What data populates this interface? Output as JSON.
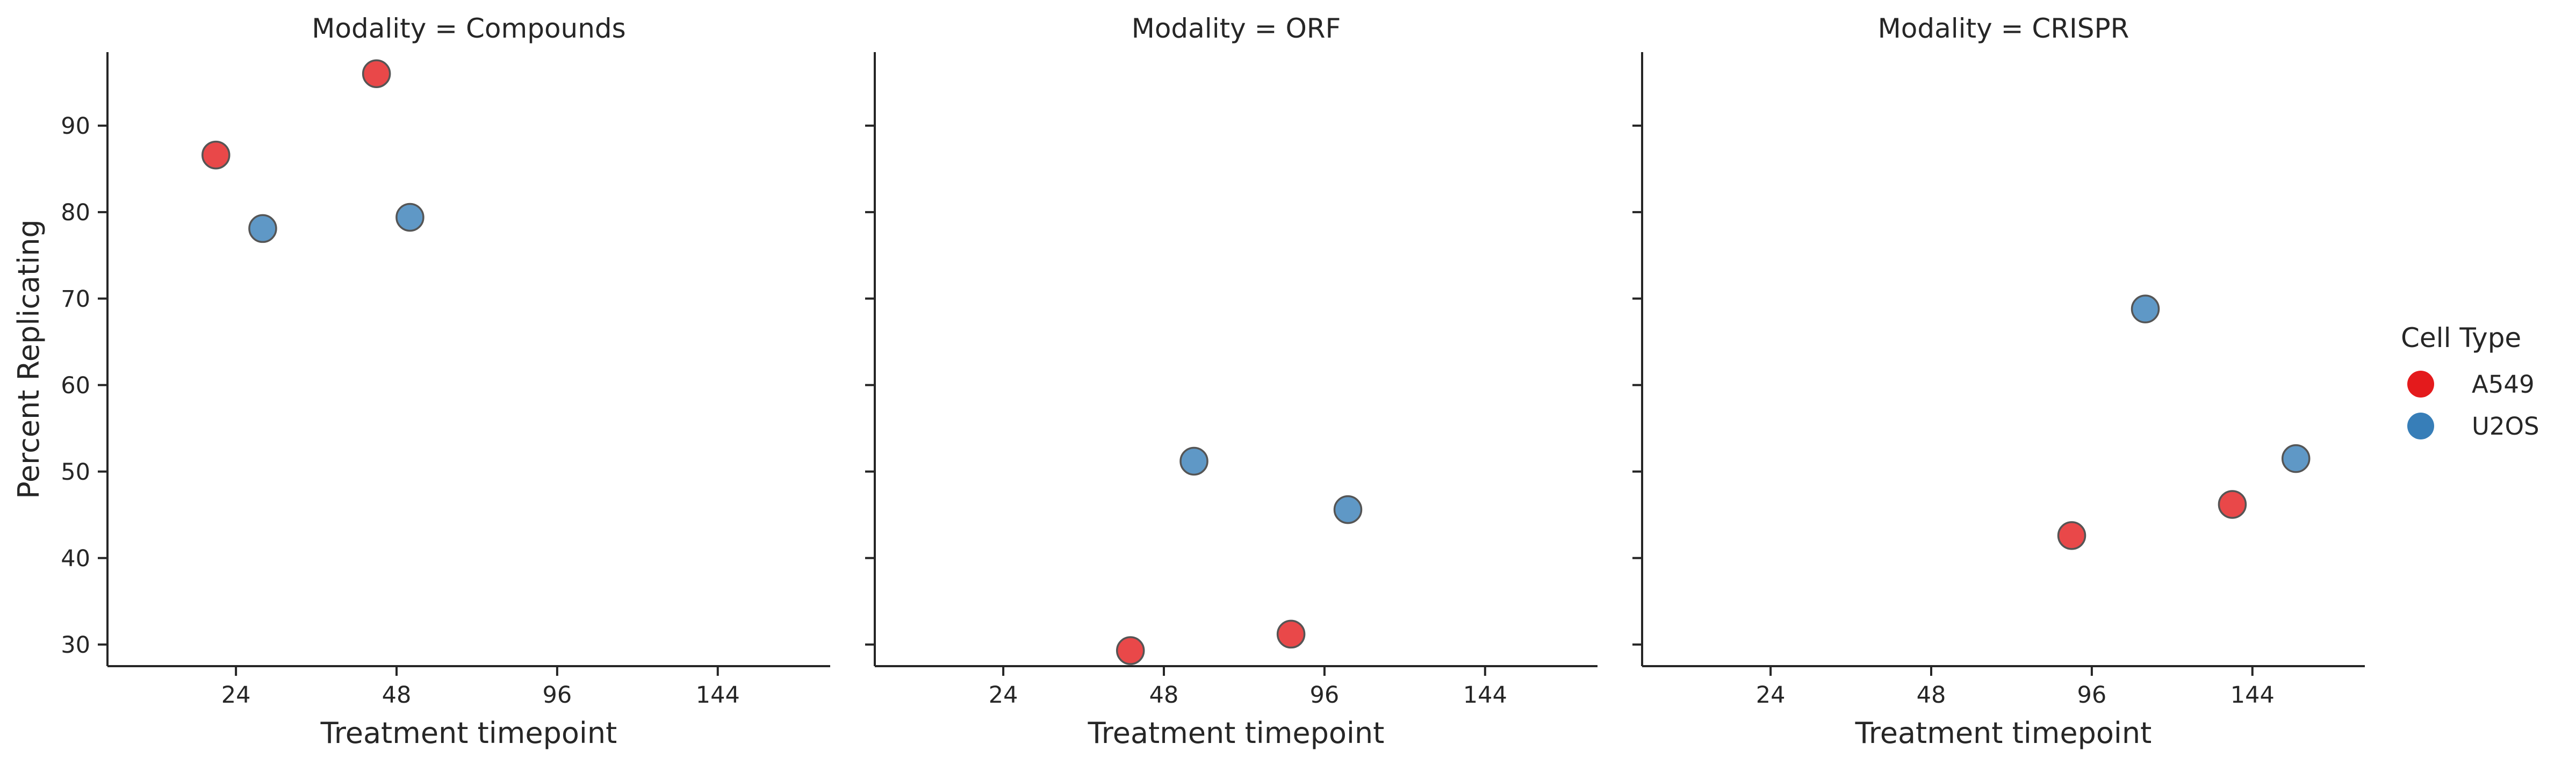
{
  "chart_data": [
    {
      "type": "scatter",
      "title": "Modality = Compounds",
      "xlabel": "Treatment timepoint",
      "ylabel": "Percent Replicating",
      "x_ticks": [
        24,
        48,
        96,
        144
      ],
      "y_ticks": [
        30,
        40,
        50,
        60,
        70,
        80,
        90
      ],
      "ylim": [
        27.5,
        98.5
      ],
      "series": [
        {
          "name": "A549",
          "color": "#e41a1c",
          "points": [
            {
              "x": 21,
              "y": 86.6
            },
            {
              "x": 45,
              "y": 96.0
            }
          ]
        },
        {
          "name": "U2OS",
          "color": "#377eb8",
          "points": [
            {
              "x": 28,
              "y": 78.1
            },
            {
              "x": 52,
              "y": 79.4
            }
          ]
        }
      ]
    },
    {
      "type": "scatter",
      "title": "Modality = ORF",
      "xlabel": "Treatment timepoint",
      "ylabel": "",
      "x_ticks": [
        24,
        48,
        96,
        144
      ],
      "y_ticks": [
        30,
        40,
        50,
        60,
        70,
        80,
        90
      ],
      "ylim": [
        27.5,
        98.5
      ],
      "series": [
        {
          "name": "A549",
          "color": "#e41a1c",
          "points": [
            {
              "x": 43,
              "y": 29.3
            },
            {
              "x": 86,
              "y": 31.2
            }
          ]
        },
        {
          "name": "U2OS",
          "color": "#377eb8",
          "points": [
            {
              "x": 57,
              "y": 51.2
            },
            {
              "x": 103,
              "y": 45.6
            }
          ]
        }
      ]
    },
    {
      "type": "scatter",
      "title": "Modality = CRISPR",
      "xlabel": "Treatment timepoint",
      "ylabel": "",
      "x_ticks": [
        24,
        48,
        96,
        144
      ],
      "y_ticks": [
        30,
        40,
        50,
        60,
        70,
        80,
        90
      ],
      "ylim": [
        27.5,
        98.5
      ],
      "series": [
        {
          "name": "A549",
          "color": "#e41a1c",
          "points": [
            {
              "x": 90,
              "y": 42.6
            },
            {
              "x": 138,
              "y": 46.2
            }
          ]
        },
        {
          "name": "U2OS",
          "color": "#377eb8",
          "points": [
            {
              "x": 112,
              "y": 68.8
            },
            {
              "x": 157,
              "y": 51.5
            }
          ]
        }
      ]
    }
  ],
  "legend": {
    "title": "Cell Type",
    "placement": "right",
    "items": [
      {
        "label": "A549",
        "color": "#e41a1c"
      },
      {
        "label": "U2OS",
        "color": "#377eb8"
      }
    ]
  }
}
